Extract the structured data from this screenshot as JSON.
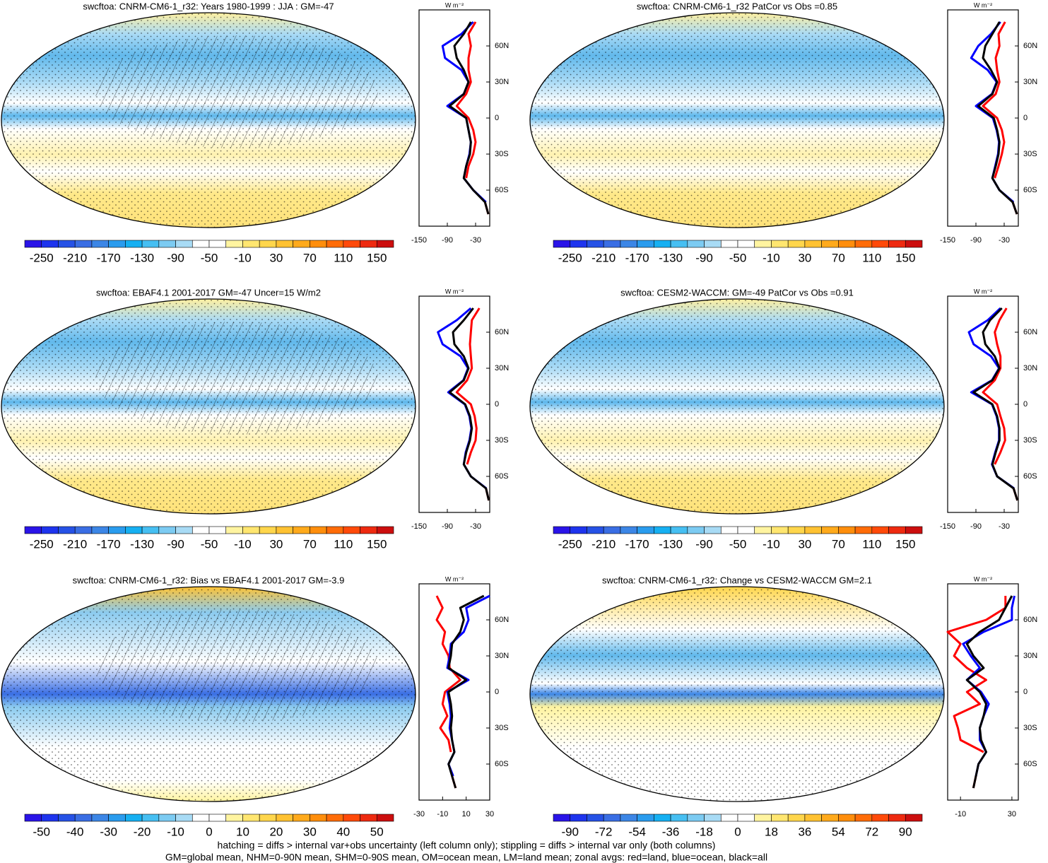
{
  "chart_data": [
    {
      "type": "line",
      "title": "swcftoa: CNRM-CM6-1_r32: Years 1980-1999 : JJA : GM=-47",
      "unit_label": "W m⁻²",
      "lat": [
        -80,
        -70,
        -60,
        -50,
        -40,
        -30,
        -20,
        -10,
        0,
        10,
        20,
        30,
        40,
        50,
        60,
        70,
        80
      ],
      "series": [
        {
          "color": "#ff0000",
          "values": [
            -3,
            -10,
            null,
            -50,
            -45,
            -35,
            -30,
            -35,
            -45,
            -70,
            -50,
            -40,
            -45,
            -45,
            -40,
            -45,
            -30
          ]
        },
        {
          "color": "#0000ff",
          "values": [
            null,
            -8,
            -35,
            -55,
            -50,
            -43,
            -40,
            -45,
            -50,
            -90,
            -55,
            -45,
            -60,
            -95,
            -100,
            -60,
            -35
          ]
        },
        {
          "color": "#000000",
          "values": [
            -3,
            -10,
            -35,
            -55,
            -50,
            -42,
            -40,
            -45,
            -50,
            -85,
            -55,
            -45,
            -55,
            -70,
            -75,
            -55,
            -40
          ]
        }
      ],
      "xlim": [
        -150,
        0
      ],
      "xticks": [
        -150,
        -90,
        -30
      ],
      "ylim": [
        -90,
        90
      ],
      "yticks": [
        {
          "value": -60,
          "label": "60S"
        },
        {
          "value": -30,
          "label": "30S"
        },
        0,
        {
          "value": 30,
          "label": "30N"
        },
        {
          "value": 60,
          "label": "60N"
        }
      ],
      "colorbar": {
        "lim": [
          -270,
          170
        ],
        "ticks": [
          -250,
          -210,
          -170,
          -130,
          -90,
          -50,
          -10,
          30,
          70,
          110,
          150
        ]
      }
    },
    {
      "type": "line",
      "title": "swcftoa: CNRM-CM6-1_r32 PatCor vs Obs =0.85",
      "unit_label": "W m⁻²",
      "lat": [
        -80,
        -70,
        -60,
        -50,
        -40,
        -30,
        -20,
        -10,
        0,
        10,
        20,
        30,
        40,
        50,
        60,
        70,
        80
      ],
      "series": [
        {
          "color": "#ff0000",
          "values": [
            -3,
            -12,
            null,
            -50,
            -42,
            -35,
            -30,
            -35,
            -45,
            -75,
            -48,
            -40,
            -45,
            -48,
            -40,
            -42,
            -28
          ]
        },
        {
          "color": "#0000ff",
          "values": [
            null,
            -10,
            -40,
            -55,
            -49,
            -43,
            -41,
            -46,
            -54,
            -90,
            -56,
            -46,
            -65,
            -100,
            -85,
            -58,
            -38
          ]
        },
        {
          "color": "#000000",
          "values": [
            -3,
            -12,
            -40,
            -55,
            -48,
            -42,
            -40,
            -45,
            -52,
            -85,
            -55,
            -45,
            -58,
            -75,
            -70,
            -55,
            -40
          ]
        }
      ],
      "xlim": [
        -150,
        0
      ],
      "xticks": [
        -150,
        -90,
        -30
      ],
      "ylim": [
        -90,
        90
      ],
      "yticks": [
        {
          "value": -60,
          "label": "60S"
        },
        {
          "value": -30,
          "label": "30S"
        },
        0,
        {
          "value": 30,
          "label": "30N"
        },
        {
          "value": 60,
          "label": "60N"
        }
      ],
      "colorbar": {
        "lim": [
          -270,
          170
        ],
        "ticks": [
          -250,
          -210,
          -170,
          -130,
          -90,
          -50,
          -10,
          30,
          70,
          110,
          150
        ]
      }
    },
    {
      "type": "line",
      "title": "swcftoa: EBAF4.1 2001-2017 GM=-47 Uncer=15 W/m2",
      "unit_label": "W m⁻²",
      "lat": [
        -80,
        -70,
        -60,
        -50,
        -40,
        -30,
        -20,
        -10,
        0,
        10,
        20,
        30,
        40,
        50,
        60,
        70,
        80
      ],
      "series": [
        {
          "color": "#ff0000",
          "values": [
            -2,
            -8,
            null,
            -48,
            -40,
            -30,
            -28,
            -32,
            -40,
            -70,
            -48,
            -38,
            -40,
            -42,
            -40,
            -38,
            -22
          ]
        },
        {
          "color": "#0000ff",
          "values": [
            null,
            -7,
            -40,
            -55,
            -51,
            -43,
            -39,
            -43,
            -53,
            -88,
            -56,
            -46,
            -62,
            -100,
            -110,
            -70,
            -40
          ]
        },
        {
          "color": "#000000",
          "values": [
            -2,
            -8,
            -40,
            -55,
            -50,
            -42,
            -38,
            -42,
            -52,
            -85,
            -55,
            -45,
            -55,
            -75,
            -78,
            -55,
            -35
          ]
        }
      ],
      "xlim": [
        -150,
        0
      ],
      "xticks": [
        -150,
        -90,
        -30
      ],
      "ylim": [
        -90,
        90
      ],
      "yticks": [
        {
          "value": -60,
          "label": "60S"
        },
        {
          "value": -30,
          "label": "30S"
        },
        0,
        {
          "value": 30,
          "label": "30N"
        },
        {
          "value": 60,
          "label": "60N"
        }
      ],
      "colorbar": {
        "lim": [
          -270,
          170
        ],
        "ticks": [
          -250,
          -210,
          -170,
          -130,
          -90,
          -50,
          -10,
          30,
          70,
          110,
          150
        ]
      }
    },
    {
      "type": "line",
      "title": "swcftoa: CESM2-WACCM: GM=-49 PatCor vs Obs =0.91",
      "unit_label": "W m⁻²",
      "lat": [
        -80,
        -70,
        -60,
        -50,
        -40,
        -30,
        -20,
        -10,
        0,
        10,
        20,
        30,
        40,
        50,
        60,
        70,
        80
      ],
      "series": [
        {
          "color": "#ff0000",
          "values": [
            -2,
            -10,
            null,
            -50,
            -38,
            -28,
            -30,
            -38,
            -45,
            -75,
            -50,
            -38,
            -38,
            -45,
            -50,
            -40,
            -25
          ]
        },
        {
          "color": "#0000ff",
          "values": [
            null,
            -9,
            -45,
            -56,
            -49,
            -41,
            -41,
            -46,
            -56,
            -100,
            -56,
            -41,
            -58,
            -95,
            -105,
            -65,
            -38
          ]
        },
        {
          "color": "#000000",
          "values": [
            -2,
            -10,
            -45,
            -55,
            -48,
            -40,
            -40,
            -45,
            -55,
            -95,
            -55,
            -40,
            -50,
            -70,
            -75,
            -60,
            -35
          ]
        }
      ],
      "xlim": [
        -150,
        0
      ],
      "xticks": [
        -150,
        -90,
        -30
      ],
      "ylim": [
        -90,
        90
      ],
      "yticks": [
        {
          "value": -60,
          "label": "60S"
        },
        {
          "value": -30,
          "label": "30S"
        },
        0,
        {
          "value": 30,
          "label": "30N"
        },
        {
          "value": 60,
          "label": "60N"
        }
      ],
      "colorbar": {
        "lim": [
          -270,
          170
        ],
        "ticks": [
          -250,
          -210,
          -170,
          -130,
          -90,
          -50,
          -10,
          30,
          70,
          110,
          150
        ]
      }
    },
    {
      "type": "line",
      "title": "swcftoa: CNRM-CM6-1_r32: Bias vs EBAF4.1 2001-2017 GM=-3.9",
      "unit_label": "W m⁻²",
      "lat": [
        -80,
        -70,
        -60,
        -50,
        -40,
        -30,
        -20,
        -10,
        0,
        10,
        20,
        30,
        40,
        50,
        60,
        70,
        80
      ],
      "series": [
        {
          "color": "#ff0000",
          "values": [
            1,
            -2,
            null,
            -3,
            -5,
            -12,
            -6,
            -10,
            -8,
            5,
            -4,
            -5,
            -10,
            -8,
            -15,
            -10,
            -15
          ]
        },
        {
          "color": "#0000ff",
          "values": [
            null,
            -1,
            -5,
            0,
            -2,
            -4,
            -3,
            -4,
            -6,
            12,
            -6,
            -4,
            -3,
            8,
            12,
            10,
            30
          ]
        },
        {
          "color": "#000000",
          "values": [
            1,
            -2,
            -5,
            0,
            -2,
            -3,
            -2,
            -3,
            -5,
            10,
            -5,
            -3,
            -2,
            5,
            8,
            5,
            25
          ]
        }
      ],
      "xlim": [
        -30,
        30
      ],
      "xticks": [
        -30,
        -10,
        10,
        30
      ],
      "ylim": [
        -90,
        90
      ],
      "yticks": [
        {
          "value": -60,
          "label": "60S"
        },
        {
          "value": -30,
          "label": "30S"
        },
        0,
        {
          "value": 30,
          "label": "30N"
        },
        {
          "value": 60,
          "label": "60N"
        }
      ],
      "colorbar": {
        "lim": [
          -55,
          55
        ],
        "ticks": [
          -50,
          -40,
          -30,
          -20,
          -10,
          0,
          10,
          20,
          30,
          40,
          50
        ]
      }
    },
    {
      "type": "line",
      "title": "swcftoa: CNRM-CM6-1_r32: Change vs CESM2-WACCM GM=2.1",
      "unit_label": "W m⁻²",
      "lat": [
        -80,
        -70,
        -60,
        -50,
        -40,
        -30,
        -20,
        -10,
        0,
        10,
        20,
        30,
        40,
        50,
        60,
        70,
        80
      ],
      "series": [
        {
          "color": "#ff0000",
          "values": [
            0,
            2,
            null,
            8,
            -10,
            -12,
            -15,
            5,
            -5,
            10,
            -5,
            -15,
            -10,
            -20,
            10,
            25,
            25
          ]
        },
        {
          "color": "#0000ff",
          "values": [
            null,
            2,
            4,
            10,
            5,
            5,
            8,
            12,
            6,
            -5,
            5,
            -2,
            -8,
            8,
            30,
            30,
            32
          ]
        },
        {
          "color": "#000000",
          "values": [
            0,
            2,
            4,
            10,
            6,
            5,
            8,
            10,
            5,
            -5,
            8,
            0,
            -5,
            5,
            20,
            25,
            30
          ]
        }
      ],
      "xlim": [
        -20,
        35
      ],
      "xticks": [
        -10,
        30
      ],
      "ylim": [
        -90,
        90
      ],
      "yticks": [
        {
          "value": -60,
          "label": "60S"
        },
        {
          "value": -30,
          "label": "30S"
        },
        0,
        {
          "value": 30,
          "label": "30N"
        },
        {
          "value": 60,
          "label": "60N"
        }
      ],
      "colorbar": {
        "lim": [
          -99,
          99
        ],
        "ticks": [
          -90,
          -72,
          -54,
          -36,
          -18,
          0,
          18,
          36,
          54,
          72,
          90
        ]
      }
    }
  ],
  "colormap": [
    "#2a14e8",
    "#1e34ee",
    "#2652e6",
    "#3a6ee4",
    "#3c86e6",
    "#2a9cee",
    "#16b0f2",
    "#46bff2",
    "#7ccbf2",
    "#a8dbf5",
    "#ffffff",
    "#ffffff",
    "#fff4a0",
    "#ffe670",
    "#ffd64c",
    "#ffc232",
    "#ffaa1c",
    "#ff8e0c",
    "#ff6c08",
    "#ff4a0a",
    "#ee2a10",
    "#cc0e0e"
  ],
  "footer": [
    "hatching = diffs > internal var+obs uncertainty (left column only); stippling = diffs > internal var only (both columns)",
    "GM=global mean, NHM=0-90N mean, SHM=0-90S mean, OM=ocean mean, LM=land mean; zonal avgs: red=land, blue=ocean, black=all"
  ]
}
